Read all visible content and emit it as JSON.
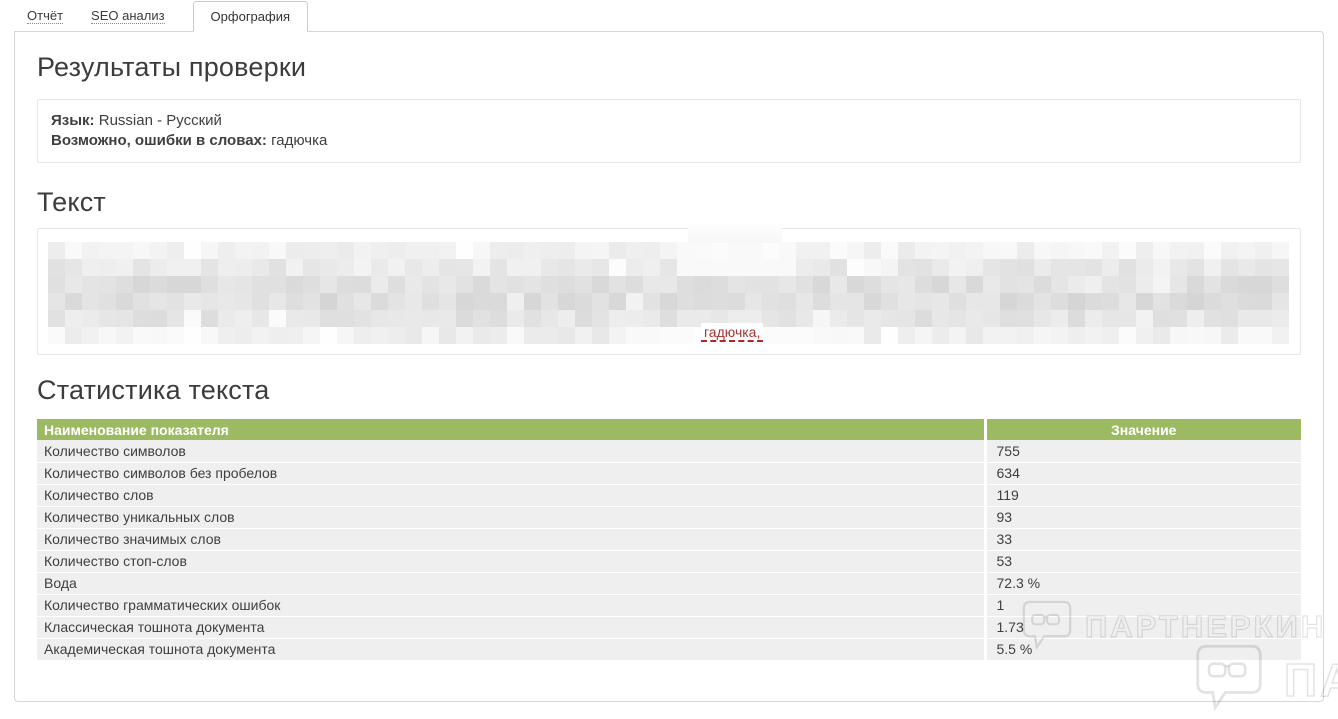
{
  "tabs": [
    {
      "label": "Отчёт",
      "active": false
    },
    {
      "label": "SEO анализ",
      "active": false
    },
    {
      "label": "Орфография",
      "active": true
    }
  ],
  "results": {
    "title": "Результаты проверки",
    "language_label": "Язык:",
    "language_value": "Russian - Русский",
    "errors_label": "Возможно, ошибки в словах:",
    "errors_value": "гадючка"
  },
  "text_section": {
    "title": "Текст",
    "misspelled_word": "гадючка,"
  },
  "stats": {
    "title": "Статистика текста",
    "columns": [
      "Наименование показателя",
      "Значение"
    ],
    "rows": [
      [
        "Количество символов",
        "755"
      ],
      [
        "Количество символов без пробелов",
        "634"
      ],
      [
        "Количество слов",
        "119"
      ],
      [
        "Количество уникальных слов",
        "93"
      ],
      [
        "Количество значимых слов",
        "33"
      ],
      [
        "Количество стоп-слов",
        "53"
      ],
      [
        "Вода",
        "72.3 %"
      ],
      [
        "Количество грамматических ошибок",
        "1"
      ],
      [
        "Классическая тошнота документа",
        "1.73"
      ],
      [
        "Академическая тошнота документа",
        "5.5 %"
      ]
    ]
  },
  "watermark": {
    "text": "ПАРТНЕРКИН",
    "text_partial": "ПА"
  },
  "colors": {
    "table_header_bg": "#9cba62",
    "table_row_bg": "#efefef",
    "error_color": "#a83232",
    "panel_border": "#d6d6d6",
    "box_border": "#e6e6e6",
    "text_color": "#3f3f3f"
  }
}
